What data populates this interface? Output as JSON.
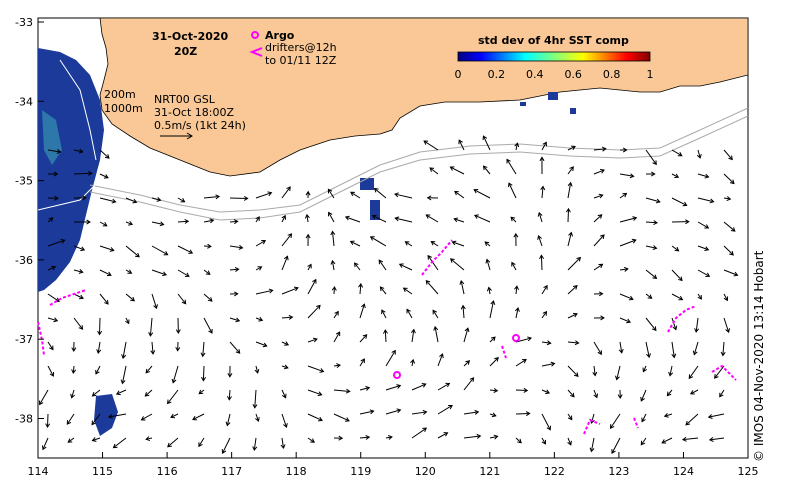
{
  "map": {
    "date_title": "31-Oct-2020",
    "time_title": "20Z",
    "legend_argo": "Argo",
    "legend_drifters_1": "drifters@12h",
    "legend_drifters_2": "to 01/11 12Z",
    "iso_200": "200m",
    "iso_1000": "1000m",
    "product": "NRT00 GSL",
    "product_time": "31-Oct 18:00Z",
    "scale_label": "0.5m/s (1kt 24h)",
    "colorbar_title": "std dev of 4hr SST comp",
    "colorbar_ticks": [
      "0",
      "0.2",
      "0.4",
      "0.6",
      "0.8",
      "1"
    ],
    "x_ticks": [
      "114",
      "115",
      "116",
      "117",
      "118",
      "119",
      "120",
      "121",
      "122",
      "123",
      "124",
      "125"
    ],
    "y_ticks": [
      "-33",
      "-34",
      "-35",
      "-36",
      "-37",
      "-38"
    ],
    "credit": "©  IMOS 04-Nov-2020 13:14 Hobart",
    "colors": {
      "land": "#f9c896",
      "ocean": "#ffffff",
      "argo": "#ff00ff",
      "drifter": "#ff00ff",
      "sst": "#1b3a9a"
    }
  }
}
